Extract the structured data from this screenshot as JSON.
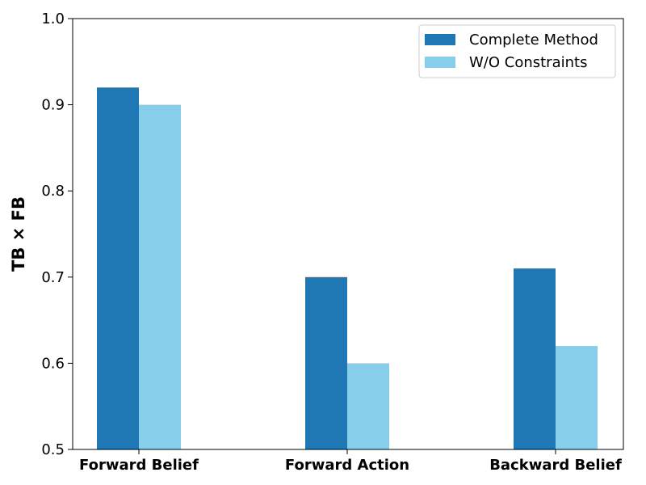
{
  "chart_data": {
    "type": "bar",
    "title": "",
    "xlabel": "",
    "ylabel": "TB × FB",
    "categories": [
      "Forward Belief",
      "Forward Action",
      "Backward Belief"
    ],
    "series": [
      {
        "name": "Complete Method",
        "values": [
          0.92,
          0.7,
          0.71
        ],
        "color": "#1f77b4"
      },
      {
        "name": "W/O Constraints",
        "values": [
          0.9,
          0.6,
          0.62
        ],
        "color": "#87ceeb"
      }
    ],
    "ylim": [
      0.5,
      1.0
    ],
    "yticks": [
      0.5,
      0.6,
      0.7,
      0.8,
      0.9,
      1.0
    ],
    "ytick_labels": [
      "0.5",
      "0.6",
      "0.7",
      "0.8",
      "0.9",
      "1.0"
    ],
    "grid": false,
    "legend": "top-right"
  }
}
